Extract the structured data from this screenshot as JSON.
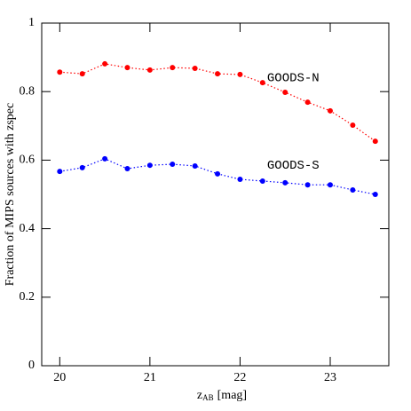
{
  "chart_data": {
    "type": "line",
    "xlabel": [
      "z",
      "AB",
      "[mag]"
    ],
    "ylabel": "Fraction of MIPS sources with zspec",
    "xlim": [
      19.8,
      23.65
    ],
    "ylim": [
      0,
      1
    ],
    "xticks": [
      20,
      21,
      22,
      23
    ],
    "yticks": [
      0,
      0.2,
      0.4,
      0.6,
      0.8,
      1
    ],
    "x": [
      20,
      20.25,
      20.5,
      20.75,
      21,
      21.25,
      21.5,
      21.75,
      22,
      22.25,
      22.5,
      22.75,
      23,
      23.25,
      23.5
    ],
    "series": [
      {
        "name": "GOODS-N",
        "color": "#ff0000",
        "values": [
          0.857,
          0.852,
          0.881,
          0.87,
          0.863,
          0.87,
          0.868,
          0.852,
          0.85,
          0.826,
          0.798,
          0.769,
          0.744,
          0.702,
          0.655
        ]
      },
      {
        "name": "GOODS-S",
        "color": "#0000ff",
        "values": [
          0.567,
          0.578,
          0.604,
          0.575,
          0.585,
          0.588,
          0.583,
          0.56,
          0.544,
          0.539,
          0.534,
          0.528,
          0.528,
          0.513,
          0.5
        ]
      }
    ],
    "annotations": [
      {
        "text": "GOODS-N",
        "x": 22.3,
        "y": 0.84
      },
      {
        "text": "GOODS-S",
        "x": 22.3,
        "y": 0.585
      }
    ]
  }
}
